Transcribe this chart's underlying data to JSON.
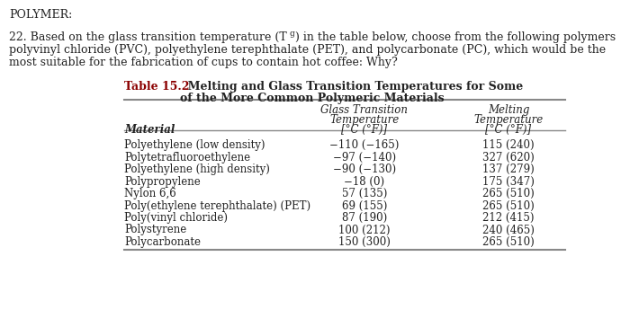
{
  "rows": [
    [
      "Polyethylene (low density)",
      "−110 (−165)",
      "115 (240)"
    ],
    [
      "Polytetrafluoroethylene",
      "−97 (−140)",
      "327 (620)"
    ],
    [
      "Polyethylene (high density)",
      "−90 (−130)",
      "137 (279)"
    ],
    [
      "Polypropylene",
      "−18 (0)",
      "175 (347)"
    ],
    [
      "Nylon 6,6",
      "57 (135)",
      "265 (510)"
    ],
    [
      "Poly(ethylene terephthalate) (PET)",
      "69 (155)",
      "265 (510)"
    ],
    [
      "Poly(vinyl chloride)",
      "87 (190)",
      "212 (415)"
    ],
    [
      "Polystyrene",
      "100 (212)",
      "240 (465)"
    ],
    [
      "Polycarbonate",
      "150 (300)",
      "265 (510)"
    ]
  ],
  "bg_color": "#ffffff",
  "text_color": "#222222",
  "table_title_color": "#8B0000",
  "line_color": "#888888",
  "header_text": "POLYMER:",
  "q1a": "22. Based on the glass transition temperature (T",
  "q1b": "g",
  "q1c": ") in the table below, choose from the following polymers",
  "q2": "polyvinyl chloride (PVC), polyethylene terephthalate (PET), and polycarbonate (PC), which would be the",
  "q3": "most suitable for the fabrication of cups to contain hot coffee: Why?",
  "tbl_label": "Table 15.2",
  "tbl_title1": "  Melting and Glass Transition Temperatures for Some",
  "tbl_title2": "of the More Common Polymeric Materials",
  "col0_header": "Material",
  "col1_header1": "Glass Transition",
  "col1_header2": "Temperature",
  "col1_header3": "[°C (°F)]",
  "col2_header1": "Melting",
  "col2_header2": "Temperature",
  "col2_header3": "[°C (°F)]"
}
